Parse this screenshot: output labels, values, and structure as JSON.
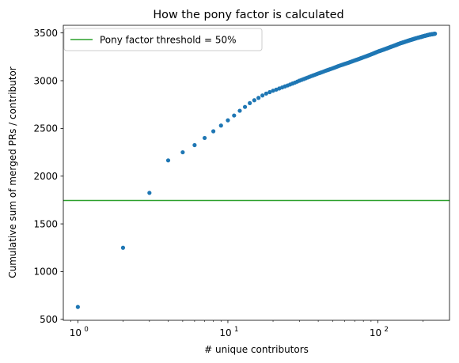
{
  "chart_data": {
    "type": "scatter",
    "title": "How the pony factor is calculated",
    "xlabel": "# unique contributors",
    "ylabel": "Cumulative sum of merged PRs / contributor",
    "xscale": "log",
    "xlim": [
      0.8,
      300
    ],
    "ylim": [
      490,
      3580
    ],
    "x_ticks": [
      {
        "value": 1,
        "base": "10",
        "exp": "0"
      },
      {
        "value": 10,
        "base": "10",
        "exp": "1"
      },
      {
        "value": 100,
        "base": "10",
        "exp": "2"
      }
    ],
    "y_ticks": [
      500,
      1000,
      1500,
      2000,
      2500,
      3000,
      3500
    ],
    "grid": false,
    "legend": {
      "position": "top-left",
      "label": "Pony factor threshold = 50%"
    },
    "threshold": {
      "value": 1745,
      "color": "#2ca02c"
    },
    "point_color": "#1f77b4",
    "total_contributors": 240,
    "points": [
      [
        1,
        630
      ],
      [
        2,
        1250
      ],
      [
        3,
        1825
      ],
      [
        4,
        2165
      ],
      [
        5,
        2250
      ],
      [
        6,
        2325
      ],
      [
        7,
        2400
      ],
      [
        8,
        2470
      ],
      [
        9,
        2530
      ],
      [
        10,
        2585
      ],
      [
        11,
        2635
      ],
      [
        12,
        2685
      ],
      [
        13,
        2725
      ],
      [
        14,
        2765
      ],
      [
        15,
        2795
      ],
      [
        16,
        2820
      ],
      [
        17,
        2845
      ],
      [
        18,
        2865
      ],
      [
        19,
        2880
      ],
      [
        20,
        2895
      ],
      [
        22,
        2918
      ],
      [
        24,
        2940
      ],
      [
        26,
        2960
      ],
      [
        28,
        2980
      ],
      [
        30,
        3000
      ],
      [
        33,
        3025
      ],
      [
        36,
        3048
      ],
      [
        40,
        3075
      ],
      [
        45,
        3105
      ],
      [
        50,
        3130
      ],
      [
        55,
        3155
      ],
      [
        60,
        3175
      ],
      [
        70,
        3212
      ],
      [
        80,
        3245
      ],
      [
        90,
        3275
      ],
      [
        100,
        3305
      ],
      [
        120,
        3350
      ],
      [
        140,
        3390
      ],
      [
        160,
        3420
      ],
      [
        180,
        3445
      ],
      [
        200,
        3465
      ],
      [
        220,
        3482
      ],
      [
        240,
        3492
      ]
    ]
  }
}
